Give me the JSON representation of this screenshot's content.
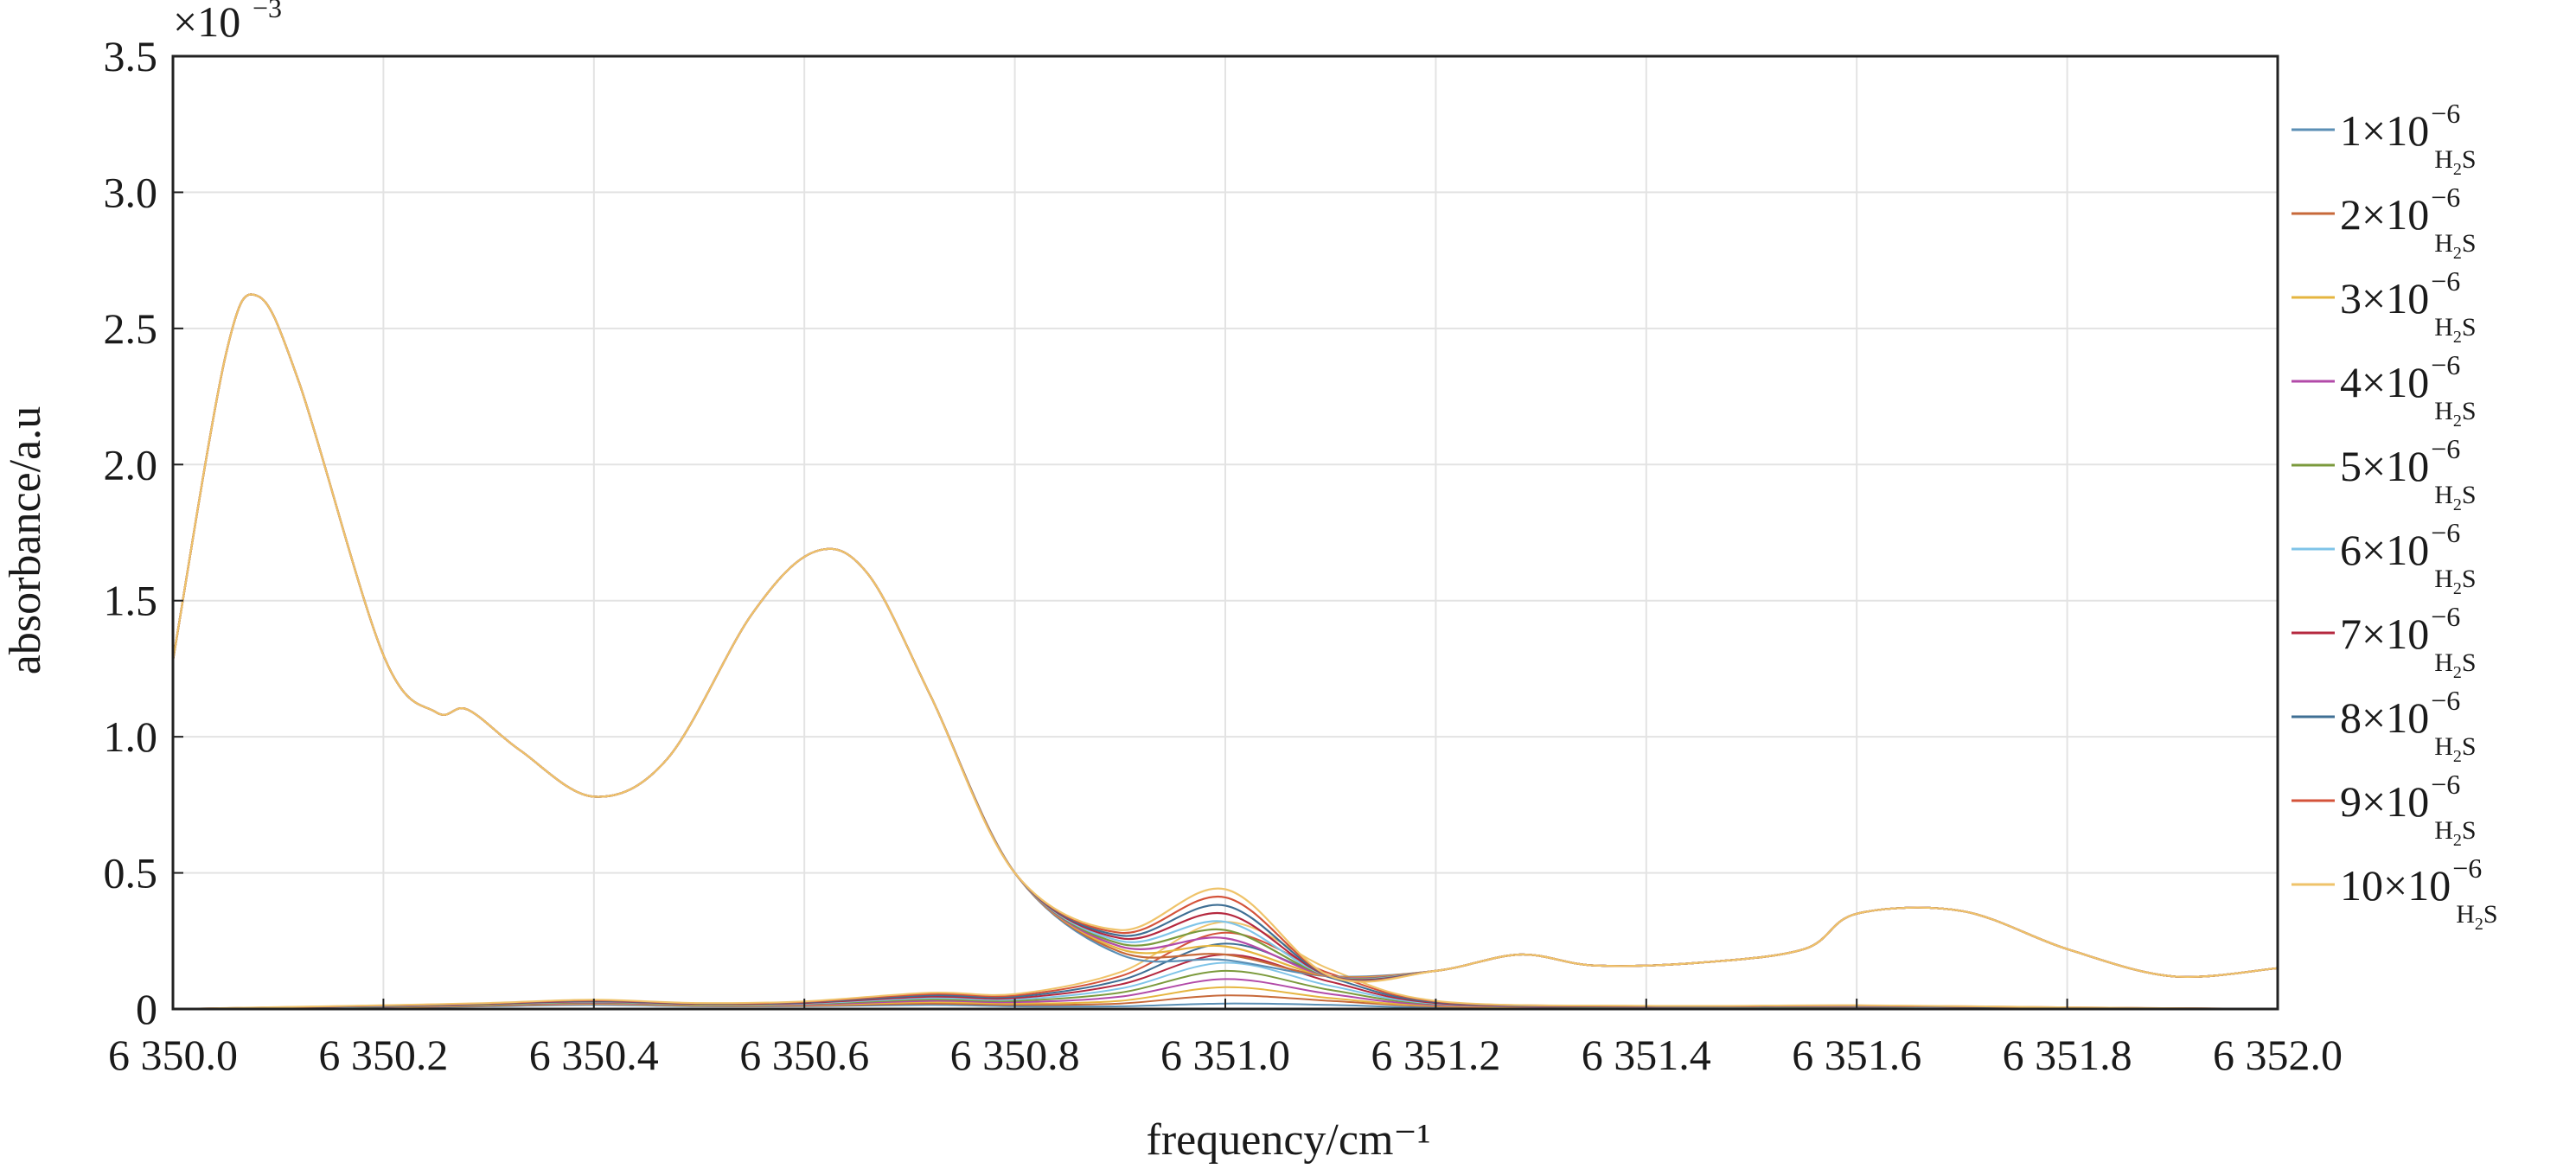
{
  "chart_data": {
    "type": "line",
    "title": "",
    "xlabel": "frequency/cm⁻¹",
    "ylabel": "absorbance/a.u",
    "y_multiplier": "×10",
    "y_multiplier_exponent": "−3",
    "xlim": [
      6350.0,
      6352.0
    ],
    "ylim": [
      0,
      3.5
    ],
    "grid": true,
    "legend_position": "right-outside",
    "x_ticks": [
      6350.0,
      6350.2,
      6350.4,
      6350.6,
      6350.8,
      6351.0,
      6351.2,
      6351.4,
      6351.6,
      6351.8,
      6352.0
    ],
    "x_tick_labels": [
      "6 350.0",
      "6 350.2",
      "6 350.4",
      "6 350.6",
      "6 350.8",
      "6 351.0",
      "6 351.2",
      "6 351.4",
      "6 351.6",
      "6 351.8",
      "6 352.0"
    ],
    "y_ticks": [
      0,
      0.5,
      1.0,
      1.5,
      2.0,
      2.5,
      3.0,
      3.5
    ],
    "y_tick_labels": [
      "0",
      "0.5",
      "1.0",
      "1.5",
      "2.0",
      "2.5",
      "3.0",
      "3.5"
    ],
    "x": [
      6350.0,
      6350.05,
      6350.08,
      6350.12,
      6350.2,
      6350.25,
      6350.28,
      6350.33,
      6350.4,
      6350.47,
      6350.55,
      6350.61,
      6350.66,
      6350.72,
      6350.8,
      6350.9,
      6351.0,
      6351.1,
      6351.2,
      6351.28,
      6351.35,
      6351.45,
      6351.55,
      6351.6,
      6351.7,
      6351.8,
      6351.9,
      6352.0
    ],
    "series": [
      {
        "name": "1×10⁻⁶ H₂S",
        "color": "#5b8fb5",
        "values": [
          1.28,
          2.4,
          2.62,
          2.3,
          1.3,
          1.09,
          1.1,
          0.95,
          0.78,
          0.92,
          1.45,
          1.68,
          1.6,
          1.15,
          0.5,
          0.2,
          0.18,
          0.12,
          0.14,
          0.2,
          0.16,
          0.17,
          0.22,
          0.35,
          0.36,
          0.22,
          0.12,
          0.15
        ]
      },
      {
        "name": "2×10⁻⁶ H₂S",
        "color": "#c7693a",
        "values": [
          1.28,
          2.4,
          2.62,
          2.3,
          1.3,
          1.09,
          1.1,
          0.95,
          0.78,
          0.92,
          1.45,
          1.68,
          1.6,
          1.15,
          0.5,
          0.21,
          0.2,
          0.12,
          0.14,
          0.2,
          0.16,
          0.17,
          0.22,
          0.35,
          0.36,
          0.22,
          0.12,
          0.15
        ]
      },
      {
        "name": "3×10⁻⁶ H₂S",
        "color": "#e5b53f",
        "values": [
          1.28,
          2.4,
          2.62,
          2.3,
          1.3,
          1.09,
          1.1,
          0.95,
          0.78,
          0.92,
          1.45,
          1.68,
          1.6,
          1.15,
          0.5,
          0.22,
          0.23,
          0.12,
          0.14,
          0.2,
          0.16,
          0.17,
          0.22,
          0.35,
          0.36,
          0.22,
          0.12,
          0.15
        ]
      },
      {
        "name": "4×10⁻⁶ H₂S",
        "color": "#b24aa8",
        "values": [
          1.28,
          2.4,
          2.62,
          2.3,
          1.3,
          1.09,
          1.1,
          0.95,
          0.78,
          0.92,
          1.45,
          1.68,
          1.6,
          1.15,
          0.5,
          0.23,
          0.26,
          0.12,
          0.14,
          0.2,
          0.16,
          0.17,
          0.22,
          0.35,
          0.36,
          0.22,
          0.12,
          0.15
        ]
      },
      {
        "name": "5×10⁻⁶ H₂S",
        "color": "#7b9a3c",
        "values": [
          1.28,
          2.4,
          2.62,
          2.3,
          1.3,
          1.09,
          1.1,
          0.95,
          0.78,
          0.92,
          1.45,
          1.68,
          1.6,
          1.15,
          0.5,
          0.24,
          0.29,
          0.12,
          0.14,
          0.2,
          0.16,
          0.17,
          0.22,
          0.35,
          0.36,
          0.22,
          0.12,
          0.15
        ]
      },
      {
        "name": "6×10⁻⁶ H₂S",
        "color": "#7fc4e8",
        "values": [
          1.28,
          2.4,
          2.62,
          2.3,
          1.3,
          1.09,
          1.1,
          0.95,
          0.78,
          0.92,
          1.45,
          1.68,
          1.6,
          1.15,
          0.5,
          0.25,
          0.32,
          0.12,
          0.14,
          0.2,
          0.16,
          0.17,
          0.22,
          0.35,
          0.36,
          0.22,
          0.12,
          0.15
        ]
      },
      {
        "name": "7×10⁻⁶ H₂S",
        "color": "#b5283f",
        "values": [
          1.28,
          2.4,
          2.62,
          2.3,
          1.3,
          1.09,
          1.1,
          0.95,
          0.78,
          0.92,
          1.45,
          1.68,
          1.6,
          1.15,
          0.5,
          0.26,
          0.35,
          0.12,
          0.14,
          0.2,
          0.16,
          0.17,
          0.22,
          0.35,
          0.36,
          0.22,
          0.12,
          0.15
        ]
      },
      {
        "name": "8×10⁻⁶ H₂S",
        "color": "#3f6f94",
        "values": [
          1.28,
          2.4,
          2.62,
          2.3,
          1.3,
          1.09,
          1.1,
          0.95,
          0.78,
          0.92,
          1.45,
          1.68,
          1.6,
          1.15,
          0.5,
          0.27,
          0.38,
          0.12,
          0.14,
          0.2,
          0.16,
          0.17,
          0.22,
          0.35,
          0.36,
          0.22,
          0.12,
          0.15
        ]
      },
      {
        "name": "9×10⁻⁶ H₂S",
        "color": "#d4533a",
        "values": [
          1.28,
          2.4,
          2.62,
          2.3,
          1.3,
          1.09,
          1.1,
          0.95,
          0.78,
          0.92,
          1.45,
          1.68,
          1.6,
          1.15,
          0.5,
          0.28,
          0.41,
          0.12,
          0.14,
          0.2,
          0.16,
          0.17,
          0.22,
          0.35,
          0.36,
          0.22,
          0.12,
          0.15
        ]
      },
      {
        "name": "10×10⁻⁶ H₂S",
        "color": "#efc36a",
        "values": [
          1.28,
          2.4,
          2.62,
          2.3,
          1.3,
          1.09,
          1.1,
          0.95,
          0.78,
          0.92,
          1.45,
          1.68,
          1.6,
          1.15,
          0.5,
          0.29,
          0.44,
          0.12,
          0.14,
          0.2,
          0.16,
          0.17,
          0.22,
          0.35,
          0.36,
          0.22,
          0.12,
          0.15
        ]
      }
    ],
    "component_x": [
      6350.0,
      6350.2,
      6350.3,
      6350.4,
      6350.5,
      6350.6,
      6350.72,
      6350.8,
      6350.9,
      6351.0,
      6351.1,
      6351.2,
      6351.4,
      6351.6,
      6351.8,
      6352.0
    ],
    "component_series": [
      {
        "values": [
          0.0,
          0.005,
          0.01,
          0.015,
          0.01,
          0.01,
          0.015,
          0.01,
          0.01,
          0.02,
          0.015,
          0.005,
          0.003,
          0.005,
          0.002,
          0.0
        ]
      },
      {
        "values": [
          0.0,
          0.006,
          0.012,
          0.018,
          0.012,
          0.012,
          0.02,
          0.015,
          0.02,
          0.05,
          0.03,
          0.01,
          0.004,
          0.006,
          0.002,
          0.0
        ]
      },
      {
        "values": [
          0.0,
          0.007,
          0.014,
          0.02,
          0.013,
          0.014,
          0.025,
          0.02,
          0.03,
          0.08,
          0.04,
          0.012,
          0.005,
          0.007,
          0.003,
          0.0
        ]
      },
      {
        "values": [
          0.0,
          0.008,
          0.015,
          0.022,
          0.015,
          0.016,
          0.03,
          0.025,
          0.045,
          0.11,
          0.055,
          0.015,
          0.006,
          0.008,
          0.003,
          0.0
        ]
      },
      {
        "values": [
          0.0,
          0.009,
          0.016,
          0.024,
          0.016,
          0.018,
          0.035,
          0.03,
          0.06,
          0.14,
          0.07,
          0.018,
          0.007,
          0.009,
          0.004,
          0.0
        ]
      },
      {
        "values": [
          0.0,
          0.01,
          0.018,
          0.026,
          0.018,
          0.02,
          0.04,
          0.035,
          0.075,
          0.17,
          0.085,
          0.02,
          0.008,
          0.01,
          0.004,
          0.0
        ]
      },
      {
        "values": [
          0.0,
          0.011,
          0.019,
          0.028,
          0.019,
          0.022,
          0.045,
          0.04,
          0.09,
          0.2,
          0.1,
          0.022,
          0.009,
          0.011,
          0.005,
          0.0
        ]
      },
      {
        "values": [
          0.0,
          0.012,
          0.02,
          0.03,
          0.02,
          0.024,
          0.05,
          0.045,
          0.105,
          0.24,
          0.115,
          0.025,
          0.01,
          0.012,
          0.005,
          0.0
        ]
      },
      {
        "values": [
          0.0,
          0.013,
          0.021,
          0.032,
          0.021,
          0.026,
          0.055,
          0.05,
          0.12,
          0.28,
          0.13,
          0.028,
          0.011,
          0.013,
          0.006,
          0.0
        ]
      },
      {
        "values": [
          0.0,
          0.014,
          0.022,
          0.034,
          0.022,
          0.028,
          0.06,
          0.055,
          0.135,
          0.32,
          0.145,
          0.03,
          0.012,
          0.014,
          0.006,
          0.0
        ]
      }
    ]
  },
  "legend": [
    {
      "base": "1×10",
      "exp": "−6",
      "sub": "H",
      "sub2": "2",
      "sub3": "S"
    },
    {
      "base": "2×10",
      "exp": "−6",
      "sub": "H",
      "sub2": "2",
      "sub3": "S"
    },
    {
      "base": "3×10",
      "exp": "−6",
      "sub": "H",
      "sub2": "2",
      "sub3": "S"
    },
    {
      "base": "4×10",
      "exp": "−6",
      "sub": "H",
      "sub2": "2",
      "sub3": "S"
    },
    {
      "base": "5×10",
      "exp": "−6",
      "sub": "H",
      "sub2": "2",
      "sub3": "S"
    },
    {
      "base": "6×10",
      "exp": "−6",
      "sub": "H",
      "sub2": "2",
      "sub3": "S"
    },
    {
      "base": "7×10",
      "exp": "−6",
      "sub": "H",
      "sub2": "2",
      "sub3": "S"
    },
    {
      "base": "8×10",
      "exp": "−6",
      "sub": "H",
      "sub2": "2",
      "sub3": "S"
    },
    {
      "base": "9×10",
      "exp": "−6",
      "sub": "H",
      "sub2": "2",
      "sub3": "S"
    },
    {
      "base": "10×10",
      "exp": "−6",
      "sub": "H",
      "sub2": "2",
      "sub3": "S"
    }
  ]
}
